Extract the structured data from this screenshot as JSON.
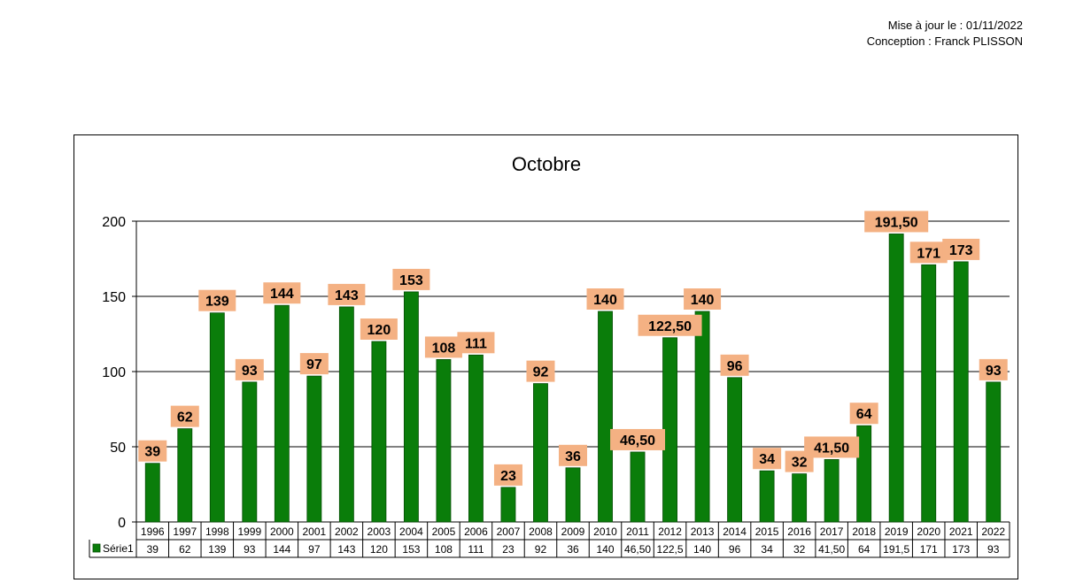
{
  "header": {
    "updated": "Mise à jour le : 01/11/2022",
    "author": "Conception : Franck PLISSON"
  },
  "colors": {
    "bar": "#0a7d0a",
    "bar_stroke": "#054d05",
    "label_bg": "#f4b183",
    "gridline": "#000000"
  },
  "chart_data": {
    "type": "bar",
    "title": "Octobre",
    "xlabel": "",
    "ylabel": "",
    "ylim": [
      0,
      200
    ],
    "yticks": [
      0,
      50,
      100,
      150,
      200
    ],
    "grid": true,
    "legend": "data-table",
    "categories": [
      "1996",
      "1997",
      "1998",
      "1999",
      "2000",
      "2001",
      "2002",
      "2003",
      "2004",
      "2005",
      "2006",
      "2007",
      "2008",
      "2009",
      "2010",
      "2011",
      "2012",
      "2013",
      "2014",
      "2015",
      "2016",
      "2017",
      "2018",
      "2019",
      "2020",
      "2021",
      "2022"
    ],
    "series": [
      {
        "name": "Série1",
        "values": [
          39,
          62,
          139,
          93,
          144,
          97,
          143,
          120,
          153,
          108,
          111,
          23,
          92,
          36,
          140,
          46.5,
          122.5,
          140,
          96,
          34,
          32,
          41.5,
          64,
          191.5,
          171,
          173,
          93
        ],
        "data_labels": [
          "39",
          "62",
          "139",
          "93",
          "144",
          "97",
          "143",
          "120",
          "153",
          "108",
          "111",
          "23",
          "92",
          "36",
          "140",
          "46,50",
          "122,50",
          "140",
          "96",
          "34",
          "32",
          "41,50",
          "64",
          "191,50",
          "171",
          "173",
          "93"
        ],
        "table_labels": [
          "39",
          "62",
          "139",
          "93",
          "144",
          "97",
          "143",
          "120",
          "153",
          "108",
          "111",
          "23",
          "92",
          "36",
          "140",
          "46,50",
          "122,5",
          "140",
          "96",
          "34",
          "32",
          "41,50",
          "64",
          "191,5",
          "171",
          "173",
          "93"
        ]
      }
    ]
  }
}
